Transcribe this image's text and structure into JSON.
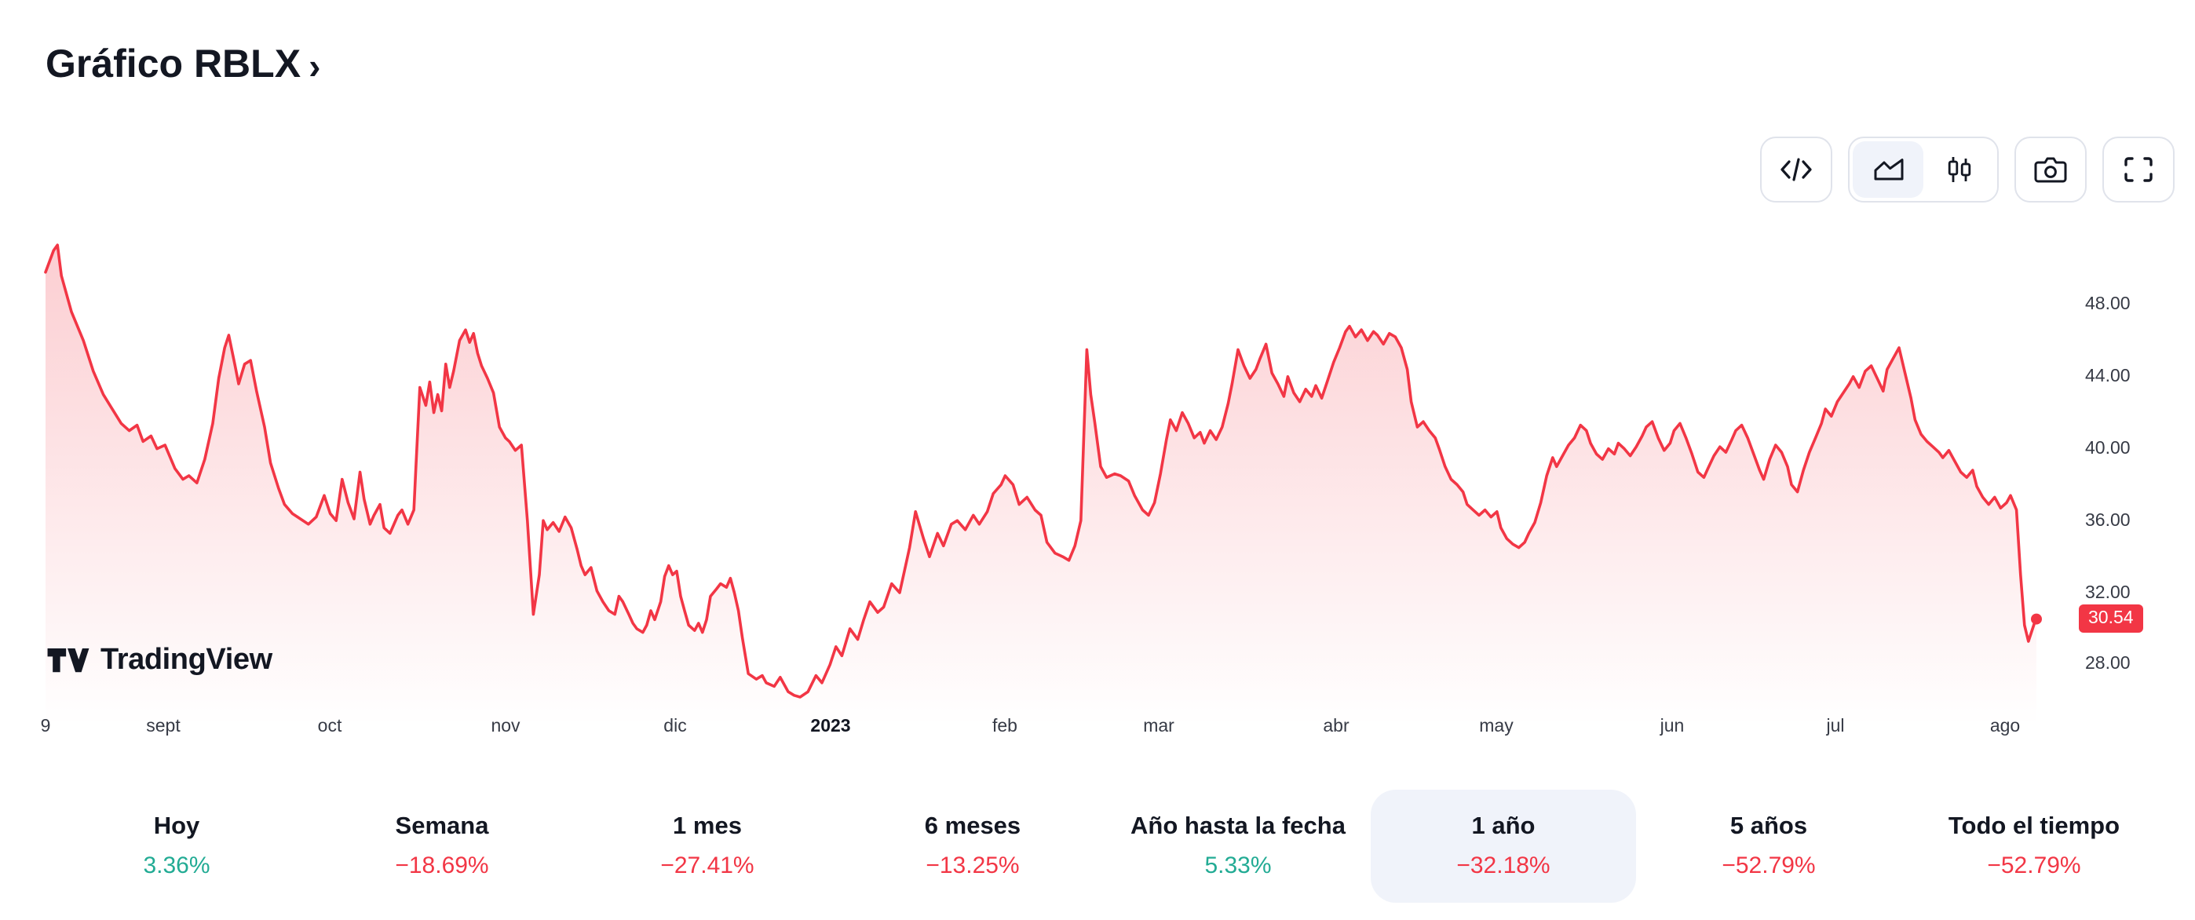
{
  "header": {
    "title": "Gráfico RBLX",
    "chevron": "›"
  },
  "toolbar": {
    "buttons": [
      {
        "name": "code-button",
        "icon": "code-icon",
        "selected": false
      },
      {
        "name": "style-area-button",
        "icon": "area-chart-icon",
        "selected": true
      },
      {
        "name": "style-candles-button",
        "icon": "candlestick-icon",
        "selected": false
      },
      {
        "name": "snapshot-button",
        "icon": "camera-icon",
        "selected": false
      },
      {
        "name": "fullscreen-button",
        "icon": "fullscreen-icon",
        "selected": false
      }
    ]
  },
  "watermark": {
    "text": "TradingView",
    "icon": "tradingview-logo-icon"
  },
  "chart_data": {
    "type": "area",
    "symbol": "RBLX",
    "line_color": "#F23645",
    "last_price": 30.54,
    "last_price_label": "30.54",
    "ylim": [
      26,
      52
    ],
    "grid": false,
    "y_ticks": [
      {
        "value": 48,
        "label": "48.00"
      },
      {
        "value": 44,
        "label": "44.00"
      },
      {
        "value": 40,
        "label": "40.00"
      },
      {
        "value": 36,
        "label": "36.00"
      },
      {
        "value": 32,
        "label": "32.00"
      },
      {
        "value": 28,
        "label": "28.00"
      }
    ],
    "x_ticks": [
      {
        "f": 0.0,
        "label": "9"
      },
      {
        "f": 0.059,
        "label": "sept"
      },
      {
        "f": 0.143,
        "label": "oct"
      },
      {
        "f": 0.231,
        "label": "nov"
      },
      {
        "f": 0.316,
        "label": "dic"
      },
      {
        "f": 0.394,
        "label": "2023",
        "bold": true
      },
      {
        "f": 0.482,
        "label": "feb"
      },
      {
        "f": 0.559,
        "label": "mar"
      },
      {
        "f": 0.648,
        "label": "abr"
      },
      {
        "f": 0.729,
        "label": "may"
      },
      {
        "f": 0.817,
        "label": "jun"
      },
      {
        "f": 0.899,
        "label": "jul"
      },
      {
        "f": 0.984,
        "label": "ago"
      }
    ],
    "points": [
      [
        0,
        49.8
      ],
      [
        0.004,
        51
      ],
      [
        0.006,
        51.3
      ],
      [
        0.008,
        49.6
      ],
      [
        0.013,
        47.6
      ],
      [
        0.019,
        46
      ],
      [
        0.024,
        44.3
      ],
      [
        0.029,
        43
      ],
      [
        0.033,
        42.3
      ],
      [
        0.038,
        41.4
      ],
      [
        0.042,
        41
      ],
      [
        0.046,
        41.3
      ],
      [
        0.049,
        40.4
      ],
      [
        0.053,
        40.7
      ],
      [
        0.056,
        40
      ],
      [
        0.06,
        40.2
      ],
      [
        0.065,
        38.9
      ],
      [
        0.069,
        38.3
      ],
      [
        0.072,
        38.5
      ],
      [
        0.076,
        38.1
      ],
      [
        0.08,
        39.4
      ],
      [
        0.084,
        41.4
      ],
      [
        0.087,
        43.9
      ],
      [
        0.09,
        45.6
      ],
      [
        0.092,
        46.3
      ],
      [
        0.095,
        44.7
      ],
      [
        0.097,
        43.6
      ],
      [
        0.1,
        44.7
      ],
      [
        0.103,
        44.9
      ],
      [
        0.106,
        43.2
      ],
      [
        0.11,
        41.2
      ],
      [
        0.113,
        39.2
      ],
      [
        0.117,
        37.8
      ],
      [
        0.12,
        36.9
      ],
      [
        0.124,
        36.4
      ],
      [
        0.128,
        36.1
      ],
      [
        0.132,
        35.8
      ],
      [
        0.136,
        36.2
      ],
      [
        0.14,
        37.4
      ],
      [
        0.143,
        36.4
      ],
      [
        0.146,
        36
      ],
      [
        0.149,
        38.3
      ],
      [
        0.152,
        37
      ],
      [
        0.155,
        36.1
      ],
      [
        0.158,
        38.7
      ],
      [
        0.16,
        37.2
      ],
      [
        0.163,
        35.8
      ],
      [
        0.165,
        36.3
      ],
      [
        0.168,
        36.9
      ],
      [
        0.17,
        35.6
      ],
      [
        0.173,
        35.3
      ],
      [
        0.177,
        36.3
      ],
      [
        0.179,
        36.6
      ],
      [
        0.182,
        35.8
      ],
      [
        0.185,
        36.6
      ],
      [
        0.186,
        38.8
      ],
      [
        0.188,
        43.4
      ],
      [
        0.191,
        42.4
      ],
      [
        0.193,
        43.7
      ],
      [
        0.195,
        42
      ],
      [
        0.197,
        43
      ],
      [
        0.199,
        42.1
      ],
      [
        0.201,
        44.7
      ],
      [
        0.203,
        43.4
      ],
      [
        0.205,
        44.3
      ],
      [
        0.208,
        46
      ],
      [
        0.211,
        46.6
      ],
      [
        0.213,
        45.9
      ],
      [
        0.215,
        46.4
      ],
      [
        0.217,
        45.3
      ],
      [
        0.219,
        44.6
      ],
      [
        0.222,
        43.9
      ],
      [
        0.225,
        43.1
      ],
      [
        0.228,
        41.2
      ],
      [
        0.231,
        40.6
      ],
      [
        0.233,
        40.4
      ],
      [
        0.236,
        39.9
      ],
      [
        0.239,
        40.2
      ],
      [
        0.242,
        36
      ],
      [
        0.245,
        30.8
      ],
      [
        0.248,
        33
      ],
      [
        0.25,
        36
      ],
      [
        0.252,
        35.5
      ],
      [
        0.255,
        35.9
      ],
      [
        0.258,
        35.4
      ],
      [
        0.261,
        36.2
      ],
      [
        0.264,
        35.6
      ],
      [
        0.267,
        34.4
      ],
      [
        0.269,
        33.5
      ],
      [
        0.271,
        33
      ],
      [
        0.274,
        33.4
      ],
      [
        0.277,
        32.1
      ],
      [
        0.28,
        31.5
      ],
      [
        0.283,
        31
      ],
      [
        0.286,
        30.8
      ],
      [
        0.288,
        31.8
      ],
      [
        0.29,
        31.5
      ],
      [
        0.293,
        30.8
      ],
      [
        0.295,
        30.3
      ],
      [
        0.297,
        30
      ],
      [
        0.3,
        29.8
      ],
      [
        0.302,
        30.2
      ],
      [
        0.304,
        31
      ],
      [
        0.306,
        30.5
      ],
      [
        0.309,
        31.5
      ],
      [
        0.311,
        32.9
      ],
      [
        0.313,
        33.5
      ],
      [
        0.315,
        33
      ],
      [
        0.317,
        33.2
      ],
      [
        0.319,
        31.8
      ],
      [
        0.321,
        31
      ],
      [
        0.323,
        30.2
      ],
      [
        0.326,
        29.9
      ],
      [
        0.328,
        30.3
      ],
      [
        0.33,
        29.8
      ],
      [
        0.332,
        30.5
      ],
      [
        0.334,
        31.8
      ],
      [
        0.337,
        32.2
      ],
      [
        0.339,
        32.5
      ],
      [
        0.342,
        32.3
      ],
      [
        0.344,
        32.8
      ],
      [
        0.346,
        32
      ],
      [
        0.348,
        31
      ],
      [
        0.35,
        29.5
      ],
      [
        0.353,
        27.5
      ],
      [
        0.357,
        27.2
      ],
      [
        0.36,
        27.4
      ],
      [
        0.362,
        27
      ],
      [
        0.366,
        26.8
      ],
      [
        0.369,
        27.3
      ],
      [
        0.373,
        26.5
      ],
      [
        0.376,
        26.3
      ],
      [
        0.379,
        26.2
      ],
      [
        0.383,
        26.5
      ],
      [
        0.387,
        27.4
      ],
      [
        0.39,
        27
      ],
      [
        0.394,
        28
      ],
      [
        0.397,
        29
      ],
      [
        0.4,
        28.5
      ],
      [
        0.404,
        30
      ],
      [
        0.408,
        29.4
      ],
      [
        0.411,
        30.5
      ],
      [
        0.414,
        31.5
      ],
      [
        0.418,
        30.9
      ],
      [
        0.421,
        31.2
      ],
      [
        0.425,
        32.5
      ],
      [
        0.429,
        32
      ],
      [
        0.434,
        34.5
      ],
      [
        0.437,
        36.5
      ],
      [
        0.441,
        35
      ],
      [
        0.444,
        34
      ],
      [
        0.448,
        35.3
      ],
      [
        0.451,
        34.6
      ],
      [
        0.455,
        35.8
      ],
      [
        0.458,
        36
      ],
      [
        0.462,
        35.5
      ],
      [
        0.466,
        36.3
      ],
      [
        0.469,
        35.8
      ],
      [
        0.473,
        36.5
      ],
      [
        0.476,
        37.5
      ],
      [
        0.48,
        38
      ],
      [
        0.482,
        38.5
      ],
      [
        0.486,
        38
      ],
      [
        0.489,
        36.9
      ],
      [
        0.493,
        37.3
      ],
      [
        0.497,
        36.6
      ],
      [
        0.5,
        36.3
      ],
      [
        0.503,
        34.8
      ],
      [
        0.507,
        34.2
      ],
      [
        0.511,
        34
      ],
      [
        0.514,
        33.8
      ],
      [
        0.517,
        34.6
      ],
      [
        0.52,
        36
      ],
      [
        0.523,
        45.5
      ],
      [
        0.525,
        43
      ],
      [
        0.527,
        41.5
      ],
      [
        0.53,
        39
      ],
      [
        0.533,
        38.4
      ],
      [
        0.537,
        38.6
      ],
      [
        0.54,
        38.5
      ],
      [
        0.544,
        38.2
      ],
      [
        0.547,
        37.4
      ],
      [
        0.551,
        36.6
      ],
      [
        0.554,
        36.3
      ],
      [
        0.557,
        37
      ],
      [
        0.56,
        38.6
      ],
      [
        0.563,
        40.5
      ],
      [
        0.565,
        41.6
      ],
      [
        0.568,
        41
      ],
      [
        0.571,
        42
      ],
      [
        0.574,
        41.4
      ],
      [
        0.577,
        40.6
      ],
      [
        0.58,
        40.9
      ],
      [
        0.582,
        40.3
      ],
      [
        0.585,
        41
      ],
      [
        0.588,
        40.5
      ],
      [
        0.591,
        41.2
      ],
      [
        0.594,
        42.5
      ],
      [
        0.596,
        43.6
      ],
      [
        0.599,
        45.5
      ],
      [
        0.602,
        44.6
      ],
      [
        0.605,
        43.9
      ],
      [
        0.608,
        44.4
      ],
      [
        0.61,
        45
      ],
      [
        0.613,
        45.8
      ],
      [
        0.616,
        44.2
      ],
      [
        0.619,
        43.6
      ],
      [
        0.622,
        42.9
      ],
      [
        0.624,
        44
      ],
      [
        0.627,
        43.1
      ],
      [
        0.63,
        42.6
      ],
      [
        0.633,
        43.3
      ],
      [
        0.636,
        42.9
      ],
      [
        0.638,
        43.5
      ],
      [
        0.641,
        42.8
      ],
      [
        0.644,
        43.8
      ],
      [
        0.647,
        44.8
      ],
      [
        0.65,
        45.6
      ],
      [
        0.653,
        46.5
      ],
      [
        0.655,
        46.8
      ],
      [
        0.658,
        46.2
      ],
      [
        0.661,
        46.6
      ],
      [
        0.664,
        46
      ],
      [
        0.667,
        46.5
      ],
      [
        0.669,
        46.3
      ],
      [
        0.672,
        45.8
      ],
      [
        0.675,
        46.4
      ],
      [
        0.678,
        46.2
      ],
      [
        0.681,
        45.6
      ],
      [
        0.684,
        44.4
      ],
      [
        0.686,
        42.6
      ],
      [
        0.689,
        41.2
      ],
      [
        0.692,
        41.5
      ],
      [
        0.695,
        41
      ],
      [
        0.698,
        40.6
      ],
      [
        0.7,
        40
      ],
      [
        0.703,
        39
      ],
      [
        0.706,
        38.3
      ],
      [
        0.709,
        38
      ],
      [
        0.712,
        37.6
      ],
      [
        0.714,
        36.9
      ],
      [
        0.717,
        36.6
      ],
      [
        0.72,
        36.3
      ],
      [
        0.723,
        36.6
      ],
      [
        0.726,
        36.2
      ],
      [
        0.729,
        36.5
      ],
      [
        0.731,
        35.6
      ],
      [
        0.734,
        35
      ],
      [
        0.737,
        34.7
      ],
      [
        0.74,
        34.5
      ],
      [
        0.743,
        34.8
      ],
      [
        0.745,
        35.3
      ],
      [
        0.748,
        35.9
      ],
      [
        0.751,
        37
      ],
      [
        0.754,
        38.5
      ],
      [
        0.757,
        39.5
      ],
      [
        0.759,
        39
      ],
      [
        0.762,
        39.6
      ],
      [
        0.765,
        40.2
      ],
      [
        0.768,
        40.6
      ],
      [
        0.771,
        41.3
      ],
      [
        0.774,
        41
      ],
      [
        0.776,
        40.3
      ],
      [
        0.779,
        39.7
      ],
      [
        0.782,
        39.4
      ],
      [
        0.785,
        40
      ],
      [
        0.788,
        39.7
      ],
      [
        0.79,
        40.3
      ],
      [
        0.793,
        40
      ],
      [
        0.796,
        39.6
      ],
      [
        0.799,
        40.1
      ],
      [
        0.802,
        40.7
      ],
      [
        0.804,
        41.2
      ],
      [
        0.807,
        41.5
      ],
      [
        0.81,
        40.6
      ],
      [
        0.813,
        39.9
      ],
      [
        0.816,
        40.3
      ],
      [
        0.818,
        41
      ],
      [
        0.821,
        41.4
      ],
      [
        0.824,
        40.6
      ],
      [
        0.827,
        39.7
      ],
      [
        0.83,
        38.7
      ],
      [
        0.833,
        38.4
      ],
      [
        0.835,
        38.9
      ],
      [
        0.838,
        39.6
      ],
      [
        0.841,
        40.1
      ],
      [
        0.844,
        39.8
      ],
      [
        0.847,
        40.5
      ],
      [
        0.849,
        41
      ],
      [
        0.852,
        41.3
      ],
      [
        0.855,
        40.6
      ],
      [
        0.858,
        39.7
      ],
      [
        0.861,
        38.8
      ],
      [
        0.863,
        38.3
      ],
      [
        0.866,
        39.4
      ],
      [
        0.869,
        40.2
      ],
      [
        0.872,
        39.8
      ],
      [
        0.875,
        39
      ],
      [
        0.877,
        38
      ],
      [
        0.88,
        37.6
      ],
      [
        0.883,
        38.8
      ],
      [
        0.886,
        39.8
      ],
      [
        0.889,
        40.6
      ],
      [
        0.892,
        41.4
      ],
      [
        0.894,
        42.2
      ],
      [
        0.897,
        41.8
      ],
      [
        0.9,
        42.6
      ],
      [
        0.903,
        43.1
      ],
      [
        0.906,
        43.6
      ],
      [
        0.908,
        44
      ],
      [
        0.911,
        43.4
      ],
      [
        0.914,
        44.3
      ],
      [
        0.917,
        44.6
      ],
      [
        0.92,
        43.9
      ],
      [
        0.923,
        43.2
      ],
      [
        0.925,
        44.4
      ],
      [
        0.928,
        45
      ],
      [
        0.931,
        45.6
      ],
      [
        0.934,
        44.2
      ],
      [
        0.937,
        42.8
      ],
      [
        0.939,
        41.6
      ],
      [
        0.942,
        40.8
      ],
      [
        0.945,
        40.4
      ],
      [
        0.948,
        40.1
      ],
      [
        0.951,
        39.8
      ],
      [
        0.953,
        39.5
      ],
      [
        0.956,
        39.9
      ],
      [
        0.959,
        39.3
      ],
      [
        0.962,
        38.7
      ],
      [
        0.965,
        38.4
      ],
      [
        0.968,
        38.8
      ],
      [
        0.97,
        37.9
      ],
      [
        0.973,
        37.3
      ],
      [
        0.976,
        36.9
      ],
      [
        0.979,
        37.3
      ],
      [
        0.982,
        36.7
      ],
      [
        0.985,
        37
      ],
      [
        0.987,
        37.4
      ],
      [
        0.99,
        36.6
      ],
      [
        0.992,
        33
      ],
      [
        0.994,
        30.2
      ],
      [
        0.996,
        29.3
      ],
      [
        0.999,
        30.3
      ],
      [
        1,
        30.54
      ]
    ]
  },
  "periods": {
    "items": [
      {
        "label": "Hoy",
        "change": "3.36%",
        "direction": "up",
        "selected": false
      },
      {
        "label": "Semana",
        "change": "−18.69%",
        "direction": "down",
        "selected": false
      },
      {
        "label": "1 mes",
        "change": "−27.41%",
        "direction": "down",
        "selected": false
      },
      {
        "label": "6 meses",
        "change": "−13.25%",
        "direction": "down",
        "selected": false
      },
      {
        "label": "Año hasta la fecha",
        "change": "5.33%",
        "direction": "up",
        "selected": false
      },
      {
        "label": "1 año",
        "change": "−32.18%",
        "direction": "down",
        "selected": true
      },
      {
        "label": "5 años",
        "change": "−52.79%",
        "direction": "down",
        "selected": false
      },
      {
        "label": "Todo el tiempo",
        "change": "−52.79%",
        "direction": "down",
        "selected": false
      }
    ]
  },
  "colors": {
    "accent": "#F23645",
    "up": "#22AB94",
    "down": "#F23645",
    "border": "#E0E3EB",
    "selected_bg": "#F0F3FA",
    "text": "#131722",
    "muted": "#50535E"
  }
}
